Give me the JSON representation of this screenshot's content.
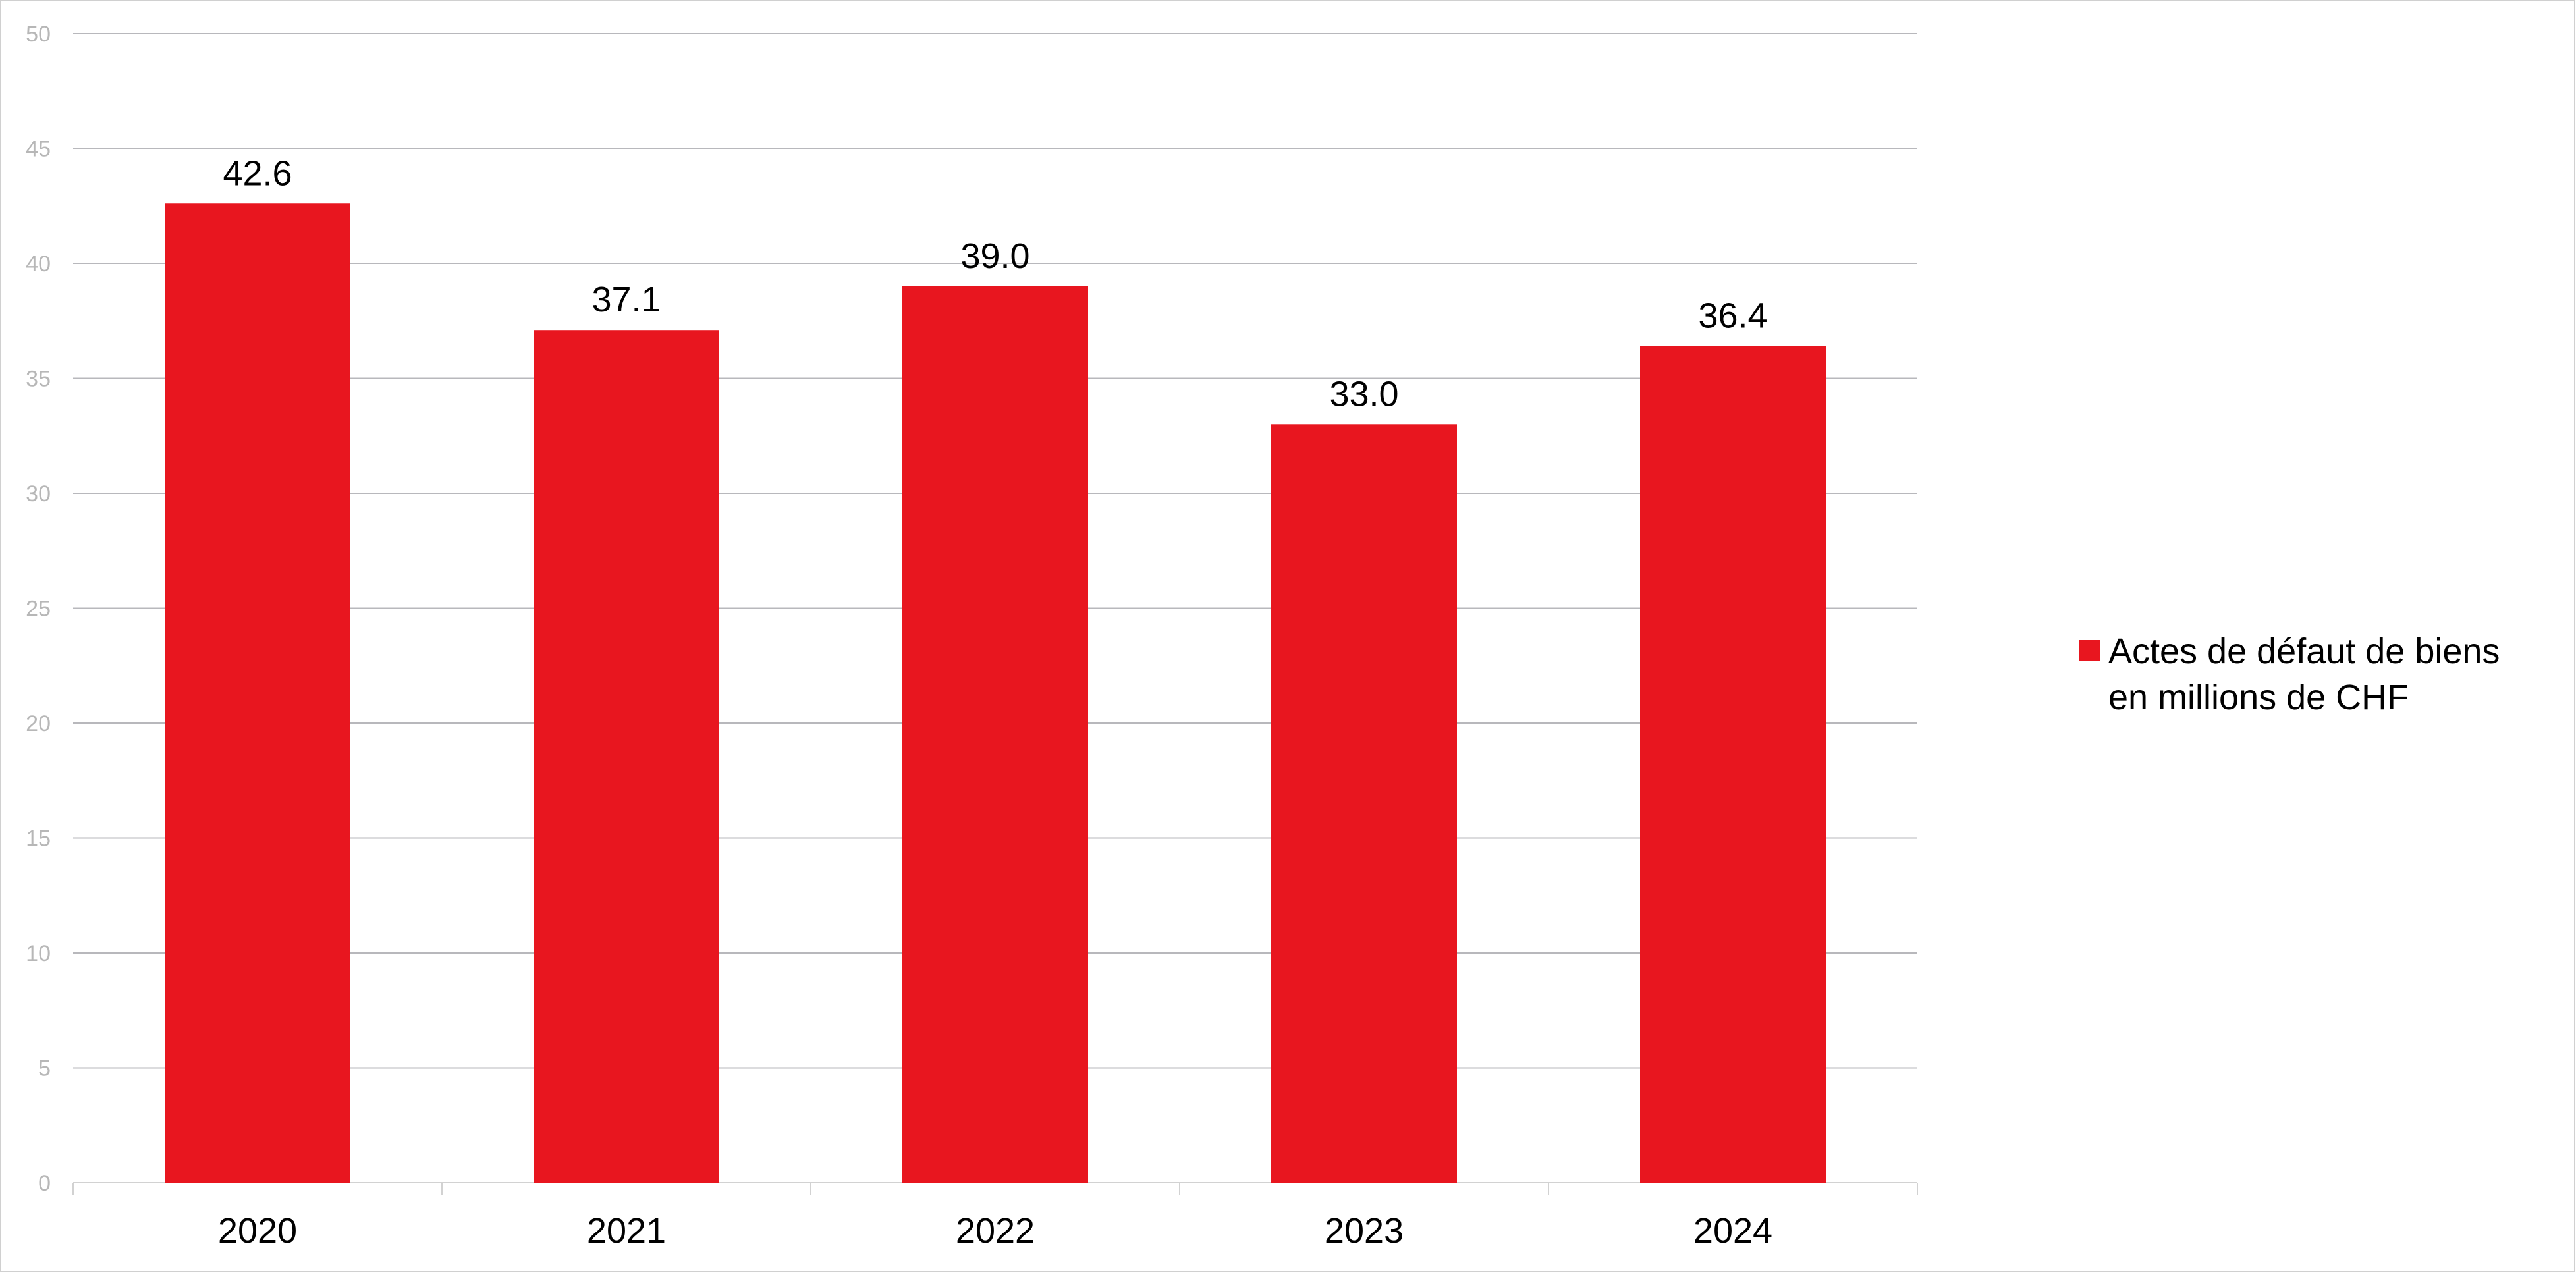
{
  "chart_data": {
    "type": "bar",
    "categories": [
      "2020",
      "2021",
      "2022",
      "2023",
      "2024"
    ],
    "series": [
      {
        "name": "Actes de défaut de biens en millions de CHF",
        "name_lines": [
          "Actes de défaut de biens",
          "en millions de CHF"
        ],
        "values": [
          42.6,
          37.1,
          39.0,
          33.0,
          36.4
        ],
        "labels": [
          "42.6",
          "37.1",
          "39.0",
          "33.0",
          "36.4"
        ],
        "color": "#e8161f"
      }
    ],
    "yticks": [
      "0",
      "5",
      "10",
      "15",
      "20",
      "25",
      "30",
      "35",
      "40",
      "45",
      "50"
    ],
    "ylim": [
      0,
      50
    ],
    "grid": true,
    "legend_position": "right",
    "title": "",
    "xlabel": "",
    "ylabel": ""
  }
}
